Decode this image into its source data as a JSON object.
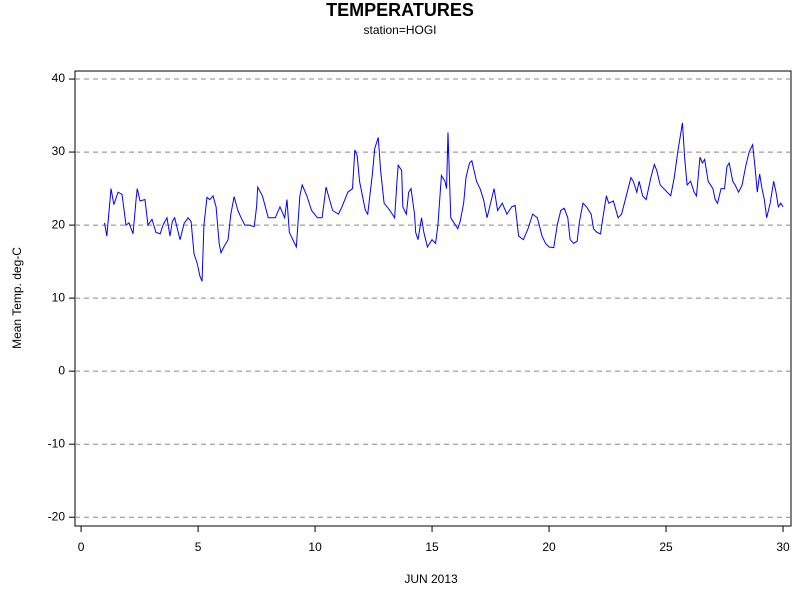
{
  "chart_data": {
    "type": "line",
    "title": "TEMPERATURES",
    "subtitle": "station=HOGI",
    "x_label": "JUN 2013",
    "y_label": "Mean Temp. deg-C",
    "xlim": [
      -0.26,
      30.34
    ],
    "ylim": [
      -21.2,
      41.1
    ],
    "xticks": [
      0,
      5,
      10,
      15,
      20,
      25,
      30
    ],
    "yticks": [
      -20,
      -10,
      0,
      10,
      20,
      30,
      40
    ],
    "grid": true,
    "x": [
      1.0,
      1.1,
      1.28,
      1.4,
      1.58,
      1.75,
      1.92,
      2.05,
      2.22,
      2.35,
      2.4,
      2.52,
      2.73,
      2.86,
      3.03,
      3.2,
      3.38,
      3.5,
      3.67,
      3.8,
      3.9,
      4.0,
      4.23,
      4.4,
      4.57,
      4.7,
      4.83,
      4.96,
      5.08,
      5.17,
      5.25,
      5.38,
      5.5,
      5.64,
      5.77,
      5.9,
      5.98,
      6.1,
      6.28,
      6.4,
      6.54,
      6.7,
      6.84,
      7.0,
      7.18,
      7.4,
      7.5,
      7.55,
      7.75,
      8.0,
      8.3,
      8.5,
      8.7,
      8.8,
      8.9,
      9.2,
      9.35,
      9.45,
      9.65,
      9.85,
      10.1,
      10.3,
      10.47,
      10.75,
      11.0,
      11.15,
      11.4,
      11.6,
      11.7,
      11.8,
      11.9,
      12.15,
      12.25,
      12.45,
      12.55,
      12.7,
      12.8,
      12.95,
      13.2,
      13.4,
      13.5,
      13.55,
      13.7,
      13.75,
      13.9,
      14.0,
      14.1,
      14.25,
      14.3,
      14.4,
      14.55,
      14.65,
      14.8,
      15.0,
      15.15,
      15.25,
      15.4,
      15.55,
      15.62,
      15.68,
      15.8,
      16.0,
      16.1,
      16.2,
      16.35,
      16.45,
      16.6,
      16.7,
      16.9,
      17.05,
      17.2,
      17.35,
      17.5,
      17.65,
      17.8,
      18.0,
      18.2,
      18.4,
      18.55,
      18.7,
      18.9,
      19.1,
      19.3,
      19.5,
      19.7,
      19.85,
      20.0,
      20.2,
      20.35,
      20.5,
      20.65,
      20.8,
      20.9,
      21.05,
      21.2,
      21.3,
      21.45,
      21.6,
      21.8,
      21.9,
      22.05,
      22.2,
      22.3,
      22.45,
      22.55,
      22.75,
      22.95,
      23.1,
      23.3,
      23.5,
      23.6,
      23.75,
      23.85,
      24.0,
      24.15,
      24.35,
      24.5,
      24.6,
      24.75,
      24.9,
      25.05,
      25.2,
      25.35,
      25.5,
      25.6,
      25.7,
      25.8,
      25.9,
      26.05,
      26.2,
      26.3,
      26.45,
      26.55,
      26.65,
      26.8,
      27.0,
      27.1,
      27.2,
      27.35,
      27.5,
      27.6,
      27.7,
      27.85,
      27.95,
      28.1,
      28.25,
      28.4,
      28.55,
      28.7,
      28.8,
      28.9,
      29.0,
      29.1,
      29.2,
      29.3,
      29.45,
      29.6,
      29.7,
      29.8,
      29.9,
      30.0
    ],
    "series": [
      {
        "name": "Mean Temp.",
        "color": "#0000ff",
        "values": [
          20.3,
          18.5,
          25,
          22.8,
          24.5,
          24.2,
          20,
          20.3,
          18.8,
          23.5,
          25,
          23.3,
          23.5,
          20,
          20.8,
          19,
          18.8,
          20,
          21,
          18.5,
          20.5,
          21,
          18,
          20.2,
          21,
          20.5,
          16,
          14.8,
          13,
          12.3,
          20,
          23.8,
          23.5,
          24,
          22.5,
          17.5,
          16.2,
          17,
          18,
          21.5,
          23.9,
          22,
          21,
          20,
          20,
          19.8,
          22.5,
          25.2,
          24,
          21,
          21,
          22.5,
          21,
          23.5,
          19,
          17,
          24,
          25.5,
          24,
          22,
          21,
          21,
          25.2,
          22,
          21.5,
          22.5,
          24.5,
          25,
          30.3,
          29.5,
          26,
          22,
          21.5,
          27,
          30.5,
          32,
          27.5,
          23,
          22,
          21,
          26,
          28.2,
          27.5,
          22.5,
          21.5,
          24.5,
          25,
          21.5,
          19,
          18,
          21,
          19,
          17,
          18,
          17.5,
          20,
          26.8,
          26,
          25,
          32.7,
          21,
          20,
          19.5,
          20.5,
          23,
          26.5,
          28.5,
          28.8,
          26,
          25,
          23.5,
          21,
          23,
          25,
          22,
          23,
          21.5,
          22.5,
          22.7,
          18.5,
          18,
          19.5,
          21.5,
          21,
          18.5,
          17.5,
          17,
          16.9,
          20,
          22,
          22.3,
          21,
          18,
          17.5,
          17.8,
          20.5,
          23,
          22.5,
          21.5,
          19.5,
          19,
          18.8,
          21,
          24,
          23,
          23.3,
          21,
          21.5,
          24,
          26.5,
          26,
          24.5,
          26,
          24,
          23.5,
          26.5,
          28.3,
          27.5,
          25.5,
          25,
          24.5,
          24,
          26.5,
          30,
          32,
          34,
          29,
          25.5,
          26,
          24.5,
          24,
          29.3,
          28.5,
          29,
          26,
          25,
          23.5,
          23,
          25,
          25,
          28,
          28.5,
          26,
          25.5,
          24.5,
          25.5,
          28,
          30,
          31,
          28,
          24.5,
          27,
          25,
          23.5,
          21,
          23,
          26,
          24.5,
          22.5,
          23,
          22.5
        ]
      }
    ]
  }
}
